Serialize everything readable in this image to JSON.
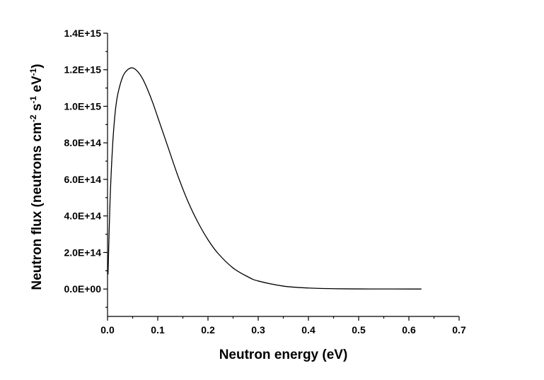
{
  "chart_data": {
    "type": "line",
    "xlabel": "Neutron energy (eV)",
    "ylabel": {
      "main": "Neutron flux (neutrons cm",
      "sup1": "-2",
      "mid1": " s",
      "sup2": "-1",
      "mid2": " eV",
      "sup3": "-1",
      "end": ")"
    },
    "xlim": [
      0,
      0.7
    ],
    "ylim": [
      -150000000000000.0,
      1400000000000000.0
    ],
    "x_ticks": [
      0.0,
      0.1,
      0.2,
      0.3,
      0.4,
      0.5,
      0.6,
      0.7
    ],
    "x_tick_labels": [
      "0.0",
      "0.1",
      "0.2",
      "0.3",
      "0.4",
      "0.5",
      "0.6",
      "0.7"
    ],
    "y_ticks": [
      0,
      200000000000000.0,
      400000000000000.0,
      600000000000000.0,
      800000000000000.0,
      1000000000000000.0,
      1200000000000000.0,
      1400000000000000.0
    ],
    "y_tick_labels": [
      "0.0E+00",
      "2.0E+14",
      "4.0E+14",
      "6.0E+14",
      "8.0E+14",
      "1.0E+15",
      "1.2E+15",
      "1.4E+15"
    ],
    "grid": false,
    "series": [
      {
        "color": "#000000",
        "x": [
          0.001,
          0.005,
          0.01,
          0.015,
          0.02,
          0.03,
          0.04,
          0.05,
          0.06,
          0.07,
          0.08,
          0.09,
          0.1,
          0.12,
          0.14,
          0.16,
          0.18,
          0.2,
          0.22,
          0.25,
          0.28,
          0.3,
          0.35,
          0.4,
          0.45,
          0.5,
          0.55,
          0.6,
          0.625
        ],
        "y": [
          80000000000000.0,
          480000000000000.0,
          780000000000000.0,
          960000000000000.0,
          1060000000000000.0,
          1160000000000000.0,
          1200000000000000.0,
          1210000000000000.0,
          1190000000000000.0,
          1150000000000000.0,
          1090000000000000.0,
          1020000000000000.0,
          940000000000000.0,
          780000000000000.0,
          620000000000000.0,
          480000000000000.0,
          365000000000000.0,
          270000000000000.0,
          195000000000000.0,
          115000000000000.0,
          66000000000000.0,
          44000000000000.0,
          16000000000000.0,
          5500000000000.0,
          1800000000000.0,
          600000000000.0,
          200000000000.0,
          60000000000.0,
          30000000000.0
        ]
      }
    ]
  }
}
